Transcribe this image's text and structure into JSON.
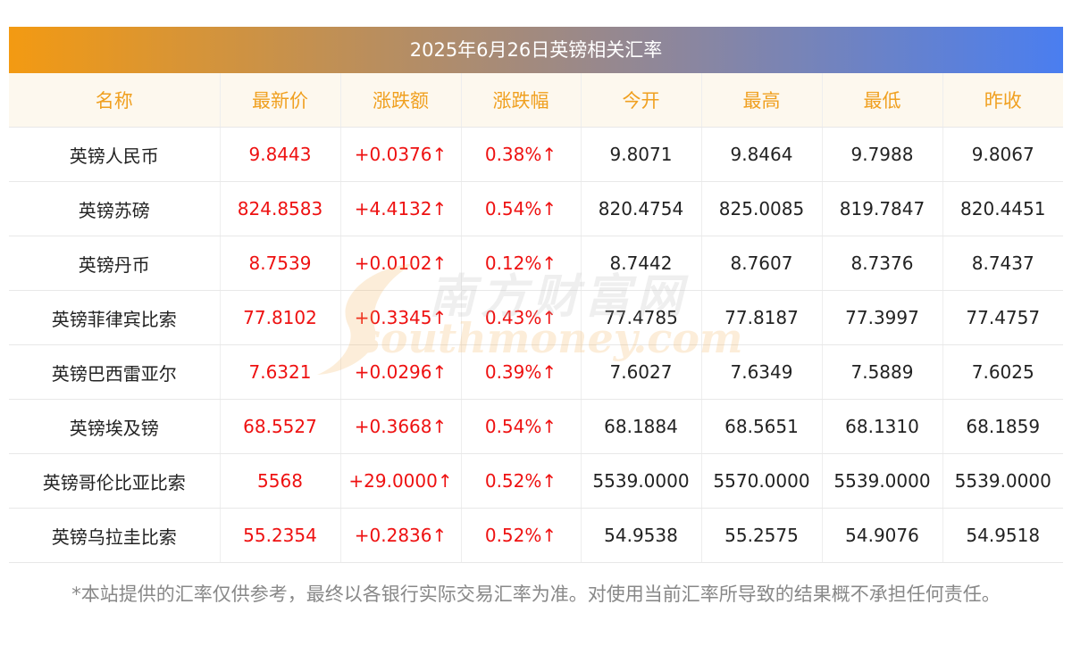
{
  "title": "2025年6月26日英镑相关汇率",
  "headers": [
    "名称",
    "最新价",
    "涨跌额",
    "涨跌幅",
    "今开",
    "最高",
    "最低",
    "昨收"
  ],
  "rows": [
    {
      "name": "英镑人民币",
      "latest": "9.8443",
      "change": "+0.0376↑",
      "pct": "0.38%↑",
      "open": "9.8071",
      "high": "9.8464",
      "low": "9.7988",
      "prev": "9.8067"
    },
    {
      "name": "英镑苏磅",
      "latest": "824.8583",
      "change": "+4.4132↑",
      "pct": "0.54%↑",
      "open": "820.4754",
      "high": "825.0085",
      "low": "819.7847",
      "prev": "820.4451"
    },
    {
      "name": "英镑丹币",
      "latest": "8.7539",
      "change": "+0.0102↑",
      "pct": "0.12%↑",
      "open": "8.7442",
      "high": "8.7607",
      "low": "8.7376",
      "prev": "8.7437"
    },
    {
      "name": "英镑菲律宾比索",
      "latest": "77.8102",
      "change": "+0.3345↑",
      "pct": "0.43%↑",
      "open": "77.4785",
      "high": "77.8187",
      "low": "77.3997",
      "prev": "77.4757"
    },
    {
      "name": "英镑巴西雷亚尔",
      "latest": "7.6321",
      "change": "+0.0296↑",
      "pct": "0.39%↑",
      "open": "7.6027",
      "high": "7.6349",
      "low": "7.5889",
      "prev": "7.6025"
    },
    {
      "name": "英镑埃及镑",
      "latest": "68.5527",
      "change": "+0.3668↑",
      "pct": "0.54%↑",
      "open": "68.1884",
      "high": "68.5651",
      "low": "68.1310",
      "prev": "68.1859"
    },
    {
      "name": "英镑哥伦比亚比索",
      "latest": "5568",
      "change": "+29.0000↑",
      "pct": "0.52%↑",
      "open": "5539.0000",
      "high": "5570.0000",
      "low": "5539.0000",
      "prev": "5539.0000"
    },
    {
      "name": "英镑乌拉圭比索",
      "latest": "55.2354",
      "change": "+0.2836↑",
      "pct": "0.52%↑",
      "open": "54.9538",
      "high": "55.2575",
      "low": "54.9076",
      "prev": "54.9518"
    }
  ],
  "footnote": "*本站提供的汇率仅供参考，最终以各银行实际交易汇率为准。对使用当前汇率所导致的结果概不承担任何责任。",
  "watermark": {
    "cn": "南方财富网",
    "en": "southmoney.com"
  },
  "colors": {
    "header_text": "#f0a020",
    "header_bg": "#fdf8ee",
    "up": "#ee1111",
    "gradient_start": "#f39a12",
    "gradient_end": "#4a7ef0"
  }
}
